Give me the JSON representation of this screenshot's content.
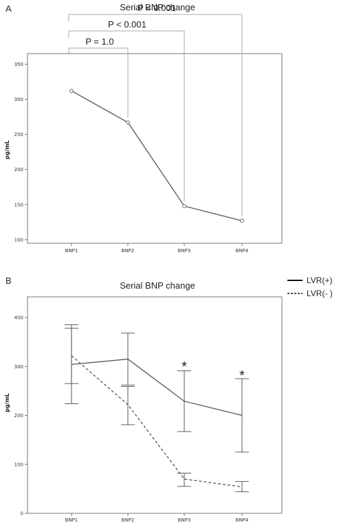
{
  "chart_data": [
    {
      "panel_label": "A",
      "type": "line",
      "title": "Serial BNP change",
      "ylabel": "pg/mL",
      "categories": [
        "BNP1",
        "BNP2",
        "BNP3",
        "BNP4"
      ],
      "ylim": [
        95,
        365
      ],
      "yticks": [
        100,
        150,
        200,
        250,
        300,
        350
      ],
      "series": [
        {
          "values": [
            312,
            267,
            148,
            127
          ],
          "color": "#555555",
          "dashed": false
        }
      ],
      "comparisons": [
        {
          "from": "BNP1",
          "to": "BNP2",
          "label": "P = 1.0"
        },
        {
          "from": "BNP1",
          "to": "BNP3",
          "label": "P < 0.001"
        },
        {
          "from": "BNP1",
          "to": "BNP4",
          "label": "P < 0.001"
        }
      ]
    },
    {
      "panel_label": "B",
      "type": "line",
      "title": "Serial BNP change",
      "ylabel": "pg/mL",
      "categories": [
        "BNP1",
        "BNP2",
        "BNP3",
        "BNP4"
      ],
      "ylim": [
        0,
        430
      ],
      "yticks": [
        0,
        100,
        200,
        300,
        400
      ],
      "legend_position": "top-right",
      "series": [
        {
          "name": "LVR(+)",
          "values": [
            304,
            315,
            229,
            200
          ],
          "error_low": [
            265,
            262,
            167,
            125
          ],
          "error_high": [
            378,
            368,
            291,
            275
          ],
          "color": "#555555",
          "dashed": false
        },
        {
          "name": "LVR(- )",
          "values": [
            322,
            222,
            70,
            54
          ],
          "error_low": [
            224,
            181,
            55,
            44
          ],
          "error_high": [
            385,
            259,
            82,
            65
          ],
          "color": "#555555",
          "dashed": true
        }
      ],
      "significance": [
        {
          "category": "BNP3",
          "mark": "*"
        },
        {
          "category": "BNP4",
          "mark": "*"
        }
      ]
    }
  ]
}
